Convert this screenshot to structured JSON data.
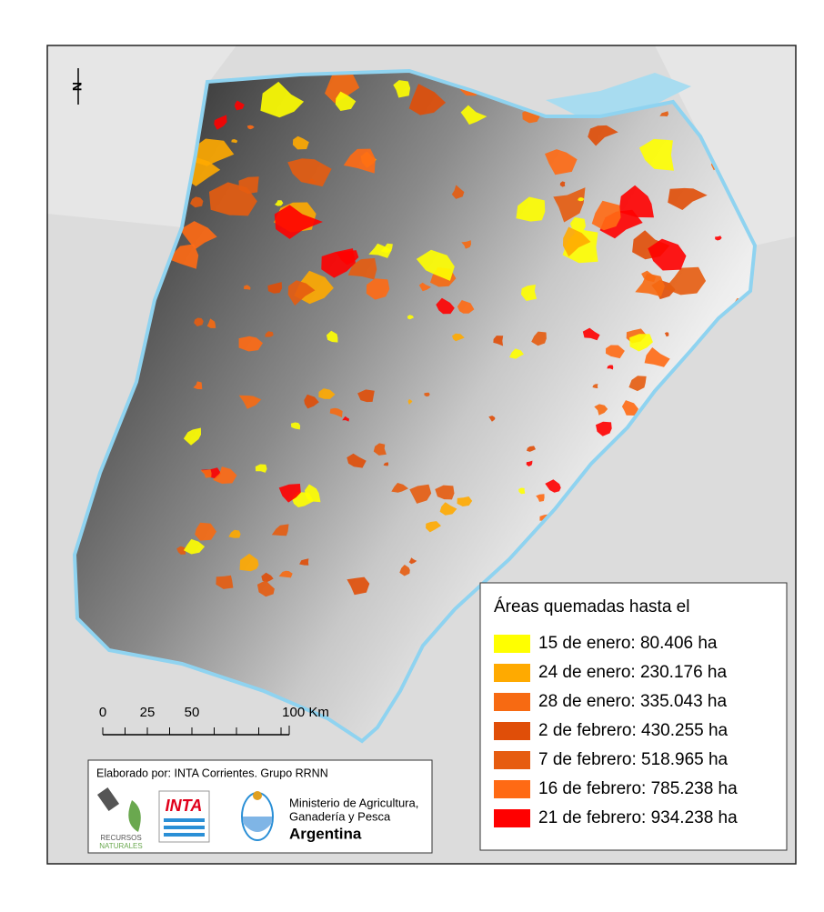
{
  "map": {
    "north_arrow": "N",
    "legend": {
      "title": "Áreas quemadas hasta el",
      "items": [
        {
          "label": "15 de enero: 80.406 ha",
          "color": "#ffff00"
        },
        {
          "label": "24 de enero: 230.176 ha",
          "color": "#ffaa00"
        },
        {
          "label": "28 de enero: 335.043 ha",
          "color": "#f76a12"
        },
        {
          "label": "2 de febrero: 430.255 ha",
          "color": "#e04e08"
        },
        {
          "label": "7 de febrero: 518.965 ha",
          "color": "#e65c10"
        },
        {
          "label": "16 de febrero: 785.238 ha",
          "color": "#ff6a14"
        },
        {
          "label": "21 de febrero: 934.238 ha",
          "color": "#ff0000"
        }
      ]
    },
    "scale_bar": {
      "labels": [
        "0",
        "25",
        "50",
        "100 Km"
      ]
    },
    "credits": {
      "text": "Elaborado por: INTA Corrientes. Grupo RRNN",
      "logo_recursos": [
        "RECURSOS",
        "NATURALES"
      ],
      "logo_inta": "INTA",
      "ministry": [
        "Ministerio de Agricultura,",
        "Ganadería y Pesca",
        "Argentina"
      ]
    }
  }
}
